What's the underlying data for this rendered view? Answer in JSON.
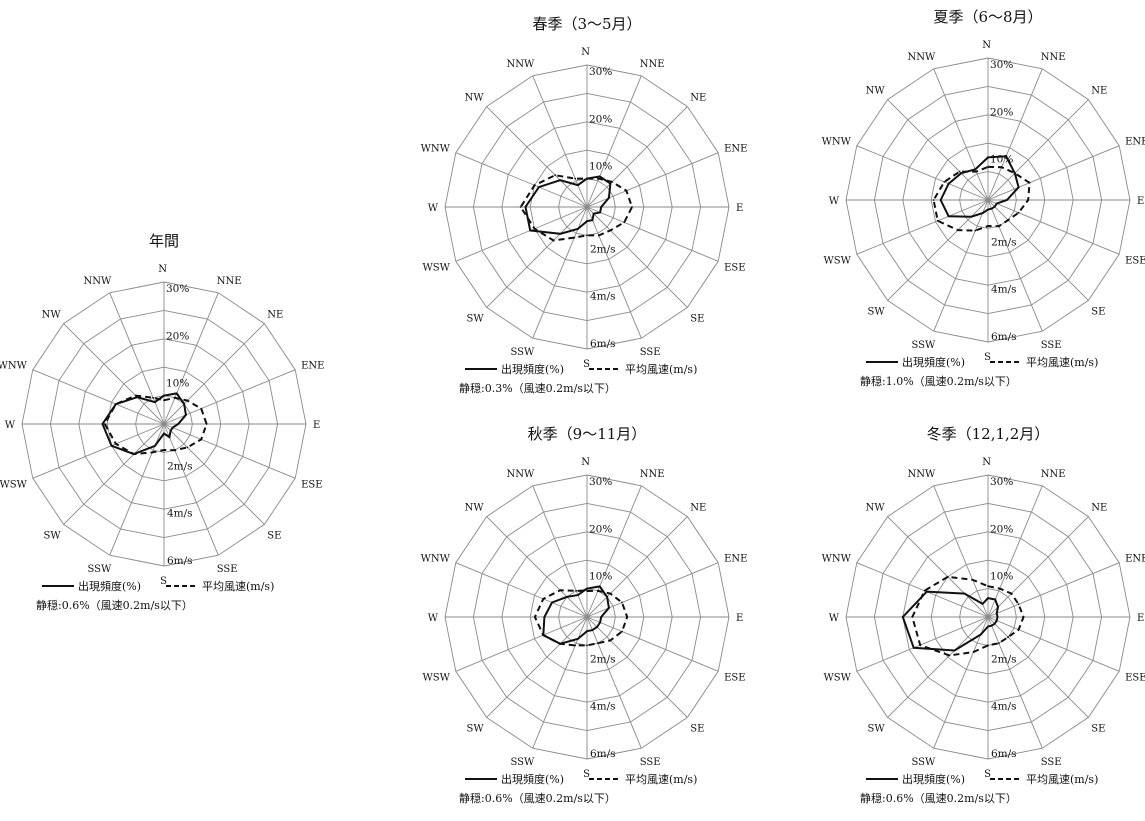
{
  "page": {
    "description_items": []
  },
  "chart_data": [
    {
      "type": "radar",
      "title": "年間",
      "directions": [
        "N",
        "NNE",
        "NE",
        "ENE",
        "E",
        "ESE",
        "SE",
        "SSE",
        "S",
        "SSW",
        "SW",
        "WSW",
        "W",
        "WNW",
        "NW",
        "NNW"
      ],
      "freq_ticks": [
        "10%",
        "20%",
        "30%"
      ],
      "speed_ticks": [
        "2m/s",
        "4m/s",
        "6m/s"
      ],
      "freq_max": 30,
      "speed_max": 6,
      "grid": true,
      "legend_position": "bottom",
      "series": [
        {
          "name": "出現頻度(%)",
          "unit": "%",
          "style": "solid",
          "values": [
            6,
            7,
            6,
            5,
            3,
            2,
            2,
            3,
            2,
            5,
            9,
            12,
            13,
            11,
            8,
            5
          ]
        },
        {
          "name": "平均風速(m/s)",
          "unit": "m/s",
          "style": "dashed",
          "values": [
            1.0,
            1.2,
            1.4,
            1.7,
            1.8,
            1.7,
            1.4,
            1.2,
            1.1,
            1.3,
            1.8,
            2.2,
            2.5,
            2.2,
            1.7,
            1.2
          ]
        }
      ],
      "legend": {
        "freq_label": "出現頻度(%)",
        "speed_label": "平均風速(m/s)"
      },
      "calm": "静穏:0.6%（風速0.2m/s以下）"
    },
    {
      "type": "radar",
      "title": "春季（3～5月）",
      "directions": [
        "N",
        "NNE",
        "NE",
        "ENE",
        "E",
        "ESE",
        "SE",
        "SSE",
        "S",
        "SSW",
        "SW",
        "WSW",
        "W",
        "WNW",
        "NW",
        "NNW"
      ],
      "freq_ticks": [
        "10%",
        "20%",
        "30%"
      ],
      "speed_ticks": [
        "2m/s",
        "4m/s",
        "6m/s"
      ],
      "freq_max": 30,
      "speed_max": 6,
      "grid": true,
      "legend_position": "bottom",
      "series": [
        {
          "name": "出現頻度(%)",
          "unit": "%",
          "style": "solid",
          "values": [
            6,
            7,
            7,
            5,
            3,
            3,
            2,
            3,
            3,
            5,
            8,
            13,
            13,
            11,
            8,
            5
          ]
        },
        {
          "name": "平均風速(m/s)",
          "unit": "m/s",
          "style": "dashed",
          "values": [
            1.2,
            1.3,
            1.5,
            1.8,
            1.9,
            1.7,
            1.4,
            1.3,
            1.2,
            1.4,
            2.0,
            2.4,
            2.8,
            2.4,
            1.9,
            1.3
          ]
        }
      ],
      "legend": {
        "freq_label": "出現頻度(%)",
        "speed_label": "平均風速(m/s)"
      },
      "calm": "静穏:0.3%（風速0.2m/s以下）"
    },
    {
      "type": "radar",
      "title": "夏季（6～8月）",
      "directions": [
        "N",
        "NNE",
        "NE",
        "ENE",
        "E",
        "ESE",
        "SE",
        "SSE",
        "S",
        "SSW",
        "SW",
        "WSW",
        "W",
        "WNW",
        "NW",
        "NNW"
      ],
      "freq_ticks": [
        "10%",
        "20%",
        "30%"
      ],
      "speed_ticks": [
        "2m/s",
        "4m/s",
        "6m/s"
      ],
      "freq_max": 30,
      "speed_max": 6,
      "grid": true,
      "legend_position": "bottom",
      "series": [
        {
          "name": "出現頻度(%)",
          "unit": "%",
          "style": "solid",
          "values": [
            9,
            10,
            8,
            7,
            4,
            2,
            2,
            2,
            2,
            3,
            5,
            9,
            10,
            9,
            8,
            7
          ]
        },
        {
          "name": "平均風速(m/s)",
          "unit": "m/s",
          "style": "dashed",
          "values": [
            1.4,
            1.5,
            1.6,
            1.9,
            1.7,
            1.4,
            1.2,
            1.2,
            1.1,
            1.4,
            1.8,
            2.3,
            2.3,
            2.0,
            1.7,
            1.3
          ]
        }
      ],
      "legend": {
        "freq_label": "出現頻度(%)",
        "speed_label": "平均風速(m/s)"
      },
      "calm": "静穏:1.0%（風速0.2m/s以下）"
    },
    {
      "type": "radar",
      "title": "秋季（9～11月）",
      "directions": [
        "N",
        "NNE",
        "NE",
        "ENE",
        "E",
        "ESE",
        "SE",
        "SSE",
        "S",
        "SSW",
        "SW",
        "WSW",
        "W",
        "WNW",
        "NW",
        "NNW"
      ],
      "freq_ticks": [
        "10%",
        "20%",
        "30%"
      ],
      "speed_ticks": [
        "2m/s",
        "4m/s",
        "6m/s"
      ],
      "freq_max": 30,
      "speed_max": 6,
      "grid": true,
      "legend_position": "bottom",
      "series": [
        {
          "name": "出現頻度(%)",
          "unit": "%",
          "style": "solid",
          "values": [
            6,
            7,
            6,
            5,
            3,
            3,
            3,
            3,
            3,
            5,
            8,
            10,
            9,
            8,
            6,
            5
          ]
        },
        {
          "name": "平均風速(m/s)",
          "unit": "m/s",
          "style": "dashed",
          "values": [
            1.1,
            1.2,
            1.4,
            1.6,
            1.7,
            1.6,
            1.4,
            1.2,
            1.2,
            1.3,
            1.6,
            2.0,
            2.2,
            2.0,
            1.6,
            1.2
          ]
        }
      ],
      "legend": {
        "freq_label": "出現頻度(%)",
        "speed_label": "平均風速(m/s)"
      },
      "calm": "静穏:0.6%（風速0.2m/s以下）"
    },
    {
      "type": "radar",
      "title": "冬季（12,1,2月）",
      "directions": [
        "N",
        "NNE",
        "NE",
        "ENE",
        "E",
        "ESE",
        "SE",
        "SSE",
        "S",
        "SSW",
        "SW",
        "WSW",
        "W",
        "WNW",
        "NW",
        "NNW"
      ],
      "freq_ticks": [
        "10%",
        "20%",
        "30%"
      ],
      "speed_ticks": [
        "2m/s",
        "4m/s",
        "6m/s"
      ],
      "freq_max": 30,
      "speed_max": 6,
      "grid": true,
      "legend_position": "bottom",
      "series": [
        {
          "name": "出現頻度(%)",
          "unit": "%",
          "style": "solid",
          "values": [
            4,
            4,
            3,
            2,
            2,
            2,
            2,
            2,
            2,
            4,
            10,
            17,
            18,
            14,
            7,
            3
          ]
        },
        {
          "name": "平均風速(m/s)",
          "unit": "m/s",
          "style": "dashed",
          "values": [
            1.3,
            1.3,
            1.4,
            1.4,
            1.5,
            1.4,
            1.2,
            1.2,
            1.2,
            1.6,
            2.3,
            3.1,
            3.2,
            2.9,
            2.4,
            1.7
          ]
        }
      ],
      "legend": {
        "freq_label": "出現頻度(%)",
        "speed_label": "平均風速(m/s)"
      },
      "calm": "静穏:0.6%（風速0.2m/s以下）"
    }
  ]
}
